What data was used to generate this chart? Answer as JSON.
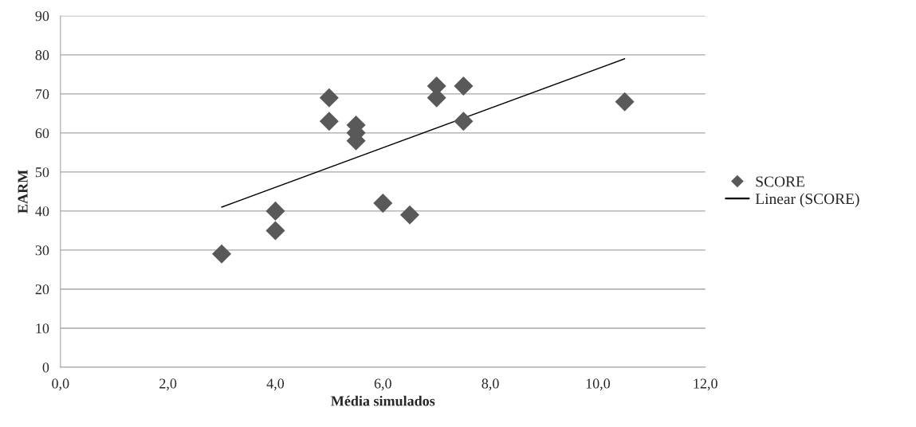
{
  "chart_data": {
    "type": "scatter",
    "xlabel": "Média simulados",
    "ylabel": "EARM",
    "xlim": [
      0,
      12
    ],
    "ylim": [
      0,
      90
    ],
    "xticks": [
      {
        "value": 0,
        "label": "0,0"
      },
      {
        "value": 2,
        "label": "2,0"
      },
      {
        "value": 4,
        "label": "4,0"
      },
      {
        "value": 6,
        "label": "6,0"
      },
      {
        "value": 8,
        "label": "8,0"
      },
      {
        "value": 10,
        "label": "10,0"
      },
      {
        "value": 12,
        "label": "12,0"
      }
    ],
    "yticks": [
      0,
      10,
      20,
      30,
      40,
      50,
      60,
      70,
      80,
      90
    ],
    "grid": "y",
    "legend": "right",
    "series": [
      {
        "name": "SCORE",
        "marker": "diamond",
        "color": "#595959",
        "x": [
          3,
          4,
          4,
          5,
          5,
          5.5,
          5.5,
          5.5,
          6,
          6.5,
          7,
          7,
          7.5,
          7.5,
          10.5
        ],
        "values": [
          29,
          40,
          35,
          69,
          63,
          62,
          60,
          58,
          42,
          39,
          72,
          69,
          72,
          63,
          68
        ]
      },
      {
        "name": "Linear (SCORE)",
        "type": "line",
        "marker": "none",
        "line_style": "solid",
        "color": "#000000",
        "x": [
          3,
          10.5
        ],
        "values": [
          41,
          79
        ]
      }
    ]
  }
}
